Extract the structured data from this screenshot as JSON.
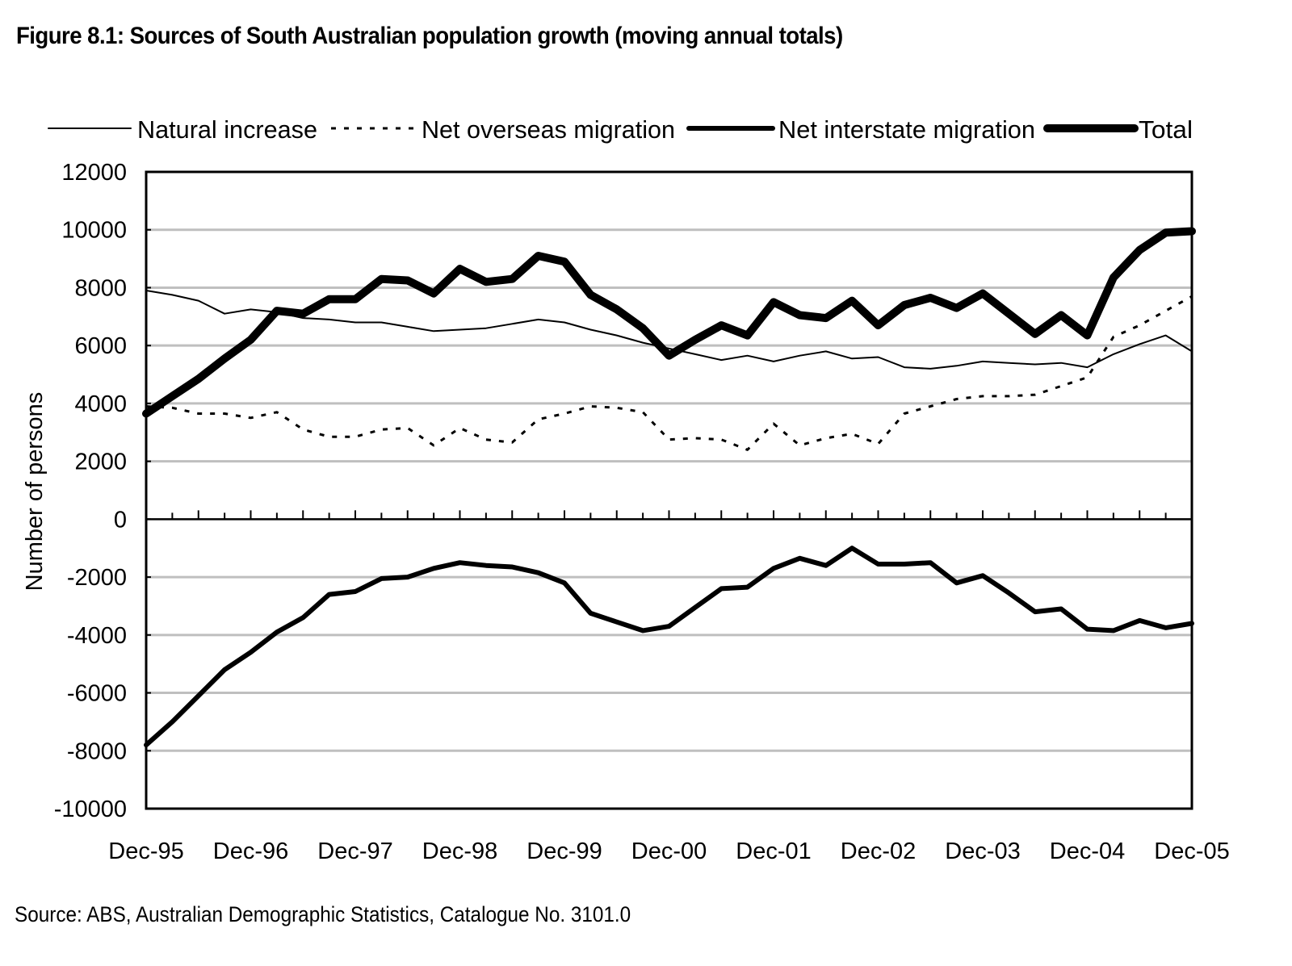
{
  "title": "Figure 8.1:  Sources of South Australian population growth (moving annual totals)",
  "source": "Source:  ABS, Australian Demographic Statistics, Catalogue No. 3101.0",
  "chart_data": {
    "type": "line",
    "title": "Figure 8.1:  Sources of South Australian population growth (moving annual totals)",
    "xlabel": "",
    "ylabel": "Number of persons",
    "ylim": [
      -10000,
      12000
    ],
    "yticks": [
      "12000",
      "10000",
      "8000",
      "6000",
      "4000",
      "2000",
      "0",
      "-2000",
      "-4000",
      "-6000",
      "-8000",
      "-10000"
    ],
    "ytick_values": [
      12000,
      10000,
      8000,
      6000,
      4000,
      2000,
      0,
      -2000,
      -4000,
      -6000,
      -8000,
      -10000
    ],
    "xtick_labels": [
      "Dec-95",
      "Dec-96",
      "Dec-97",
      "Dec-98",
      "Dec-99",
      "Dec-00",
      "Dec-01",
      "Dec-02",
      "Dec-03",
      "Dec-04",
      "Dec-05"
    ],
    "x_frequency": "quarterly",
    "x_count": 41,
    "grid": true,
    "legend_position": "top",
    "series": [
      {
        "name": "Natural increase",
        "style": "thin-solid",
        "color": "#000000",
        "values": [
          7900,
          7750,
          7550,
          7100,
          7250,
          7150,
          6950,
          6900,
          6800,
          6800,
          6650,
          6500,
          6550,
          6600,
          6750,
          6900,
          6800,
          6550,
          6350,
          6100,
          5900,
          5700,
          5500,
          5650,
          5450,
          5650,
          5800,
          5550,
          5600,
          5250,
          5200,
          5300,
          5450,
          5400,
          5350,
          5400,
          5250,
          5700,
          6050,
          6350,
          5800
        ]
      },
      {
        "name": "Net overseas migration",
        "style": "dotted",
        "color": "#000000",
        "values": [
          3900,
          3850,
          3650,
          3650,
          3500,
          3700,
          3100,
          2850,
          2850,
          3100,
          3150,
          2550,
          3150,
          2750,
          2650,
          3450,
          3650,
          3900,
          3850,
          3700,
          2750,
          2800,
          2750,
          2400,
          3300,
          2550,
          2800,
          2950,
          2600,
          3650,
          3900,
          4150,
          4250,
          4250,
          4300,
          4600,
          4900,
          6300,
          6700,
          7200,
          7700
        ]
      },
      {
        "name": "Net interstate migration",
        "style": "medium-solid",
        "color": "#000000",
        "values": [
          -7800,
          -7000,
          -6100,
          -5200,
          -4600,
          -3900,
          -3400,
          -2600,
          -2500,
          -2050,
          -2000,
          -1700,
          -1500,
          -1600,
          -1650,
          -1850,
          -2200,
          -3250,
          -3550,
          -3850,
          -3700,
          -3050,
          -2400,
          -2350,
          -1700,
          -1350,
          -1600,
          -1000,
          -1550,
          -1550,
          -1500,
          -2200,
          -1950,
          -2550,
          -3200,
          -3100,
          -3800,
          -3850,
          -3500,
          -3750,
          -3600
        ]
      },
      {
        "name": "Total",
        "style": "thick-solid",
        "color": "#000000",
        "values": [
          3650,
          4250,
          4850,
          5550,
          6200,
          7200,
          7100,
          7600,
          7600,
          8300,
          8250,
          7800,
          8650,
          8200,
          8300,
          9100,
          8900,
          7750,
          7250,
          6600,
          5650,
          6200,
          6700,
          6350,
          7500,
          7050,
          6950,
          7550,
          6700,
          7400,
          7650,
          7300,
          7800,
          7100,
          6400,
          7050,
          6350,
          8350,
          9300,
          9900,
          9950
        ]
      }
    ],
    "colors": {
      "grid": "#bfbfbf",
      "axis": "#000000"
    }
  }
}
